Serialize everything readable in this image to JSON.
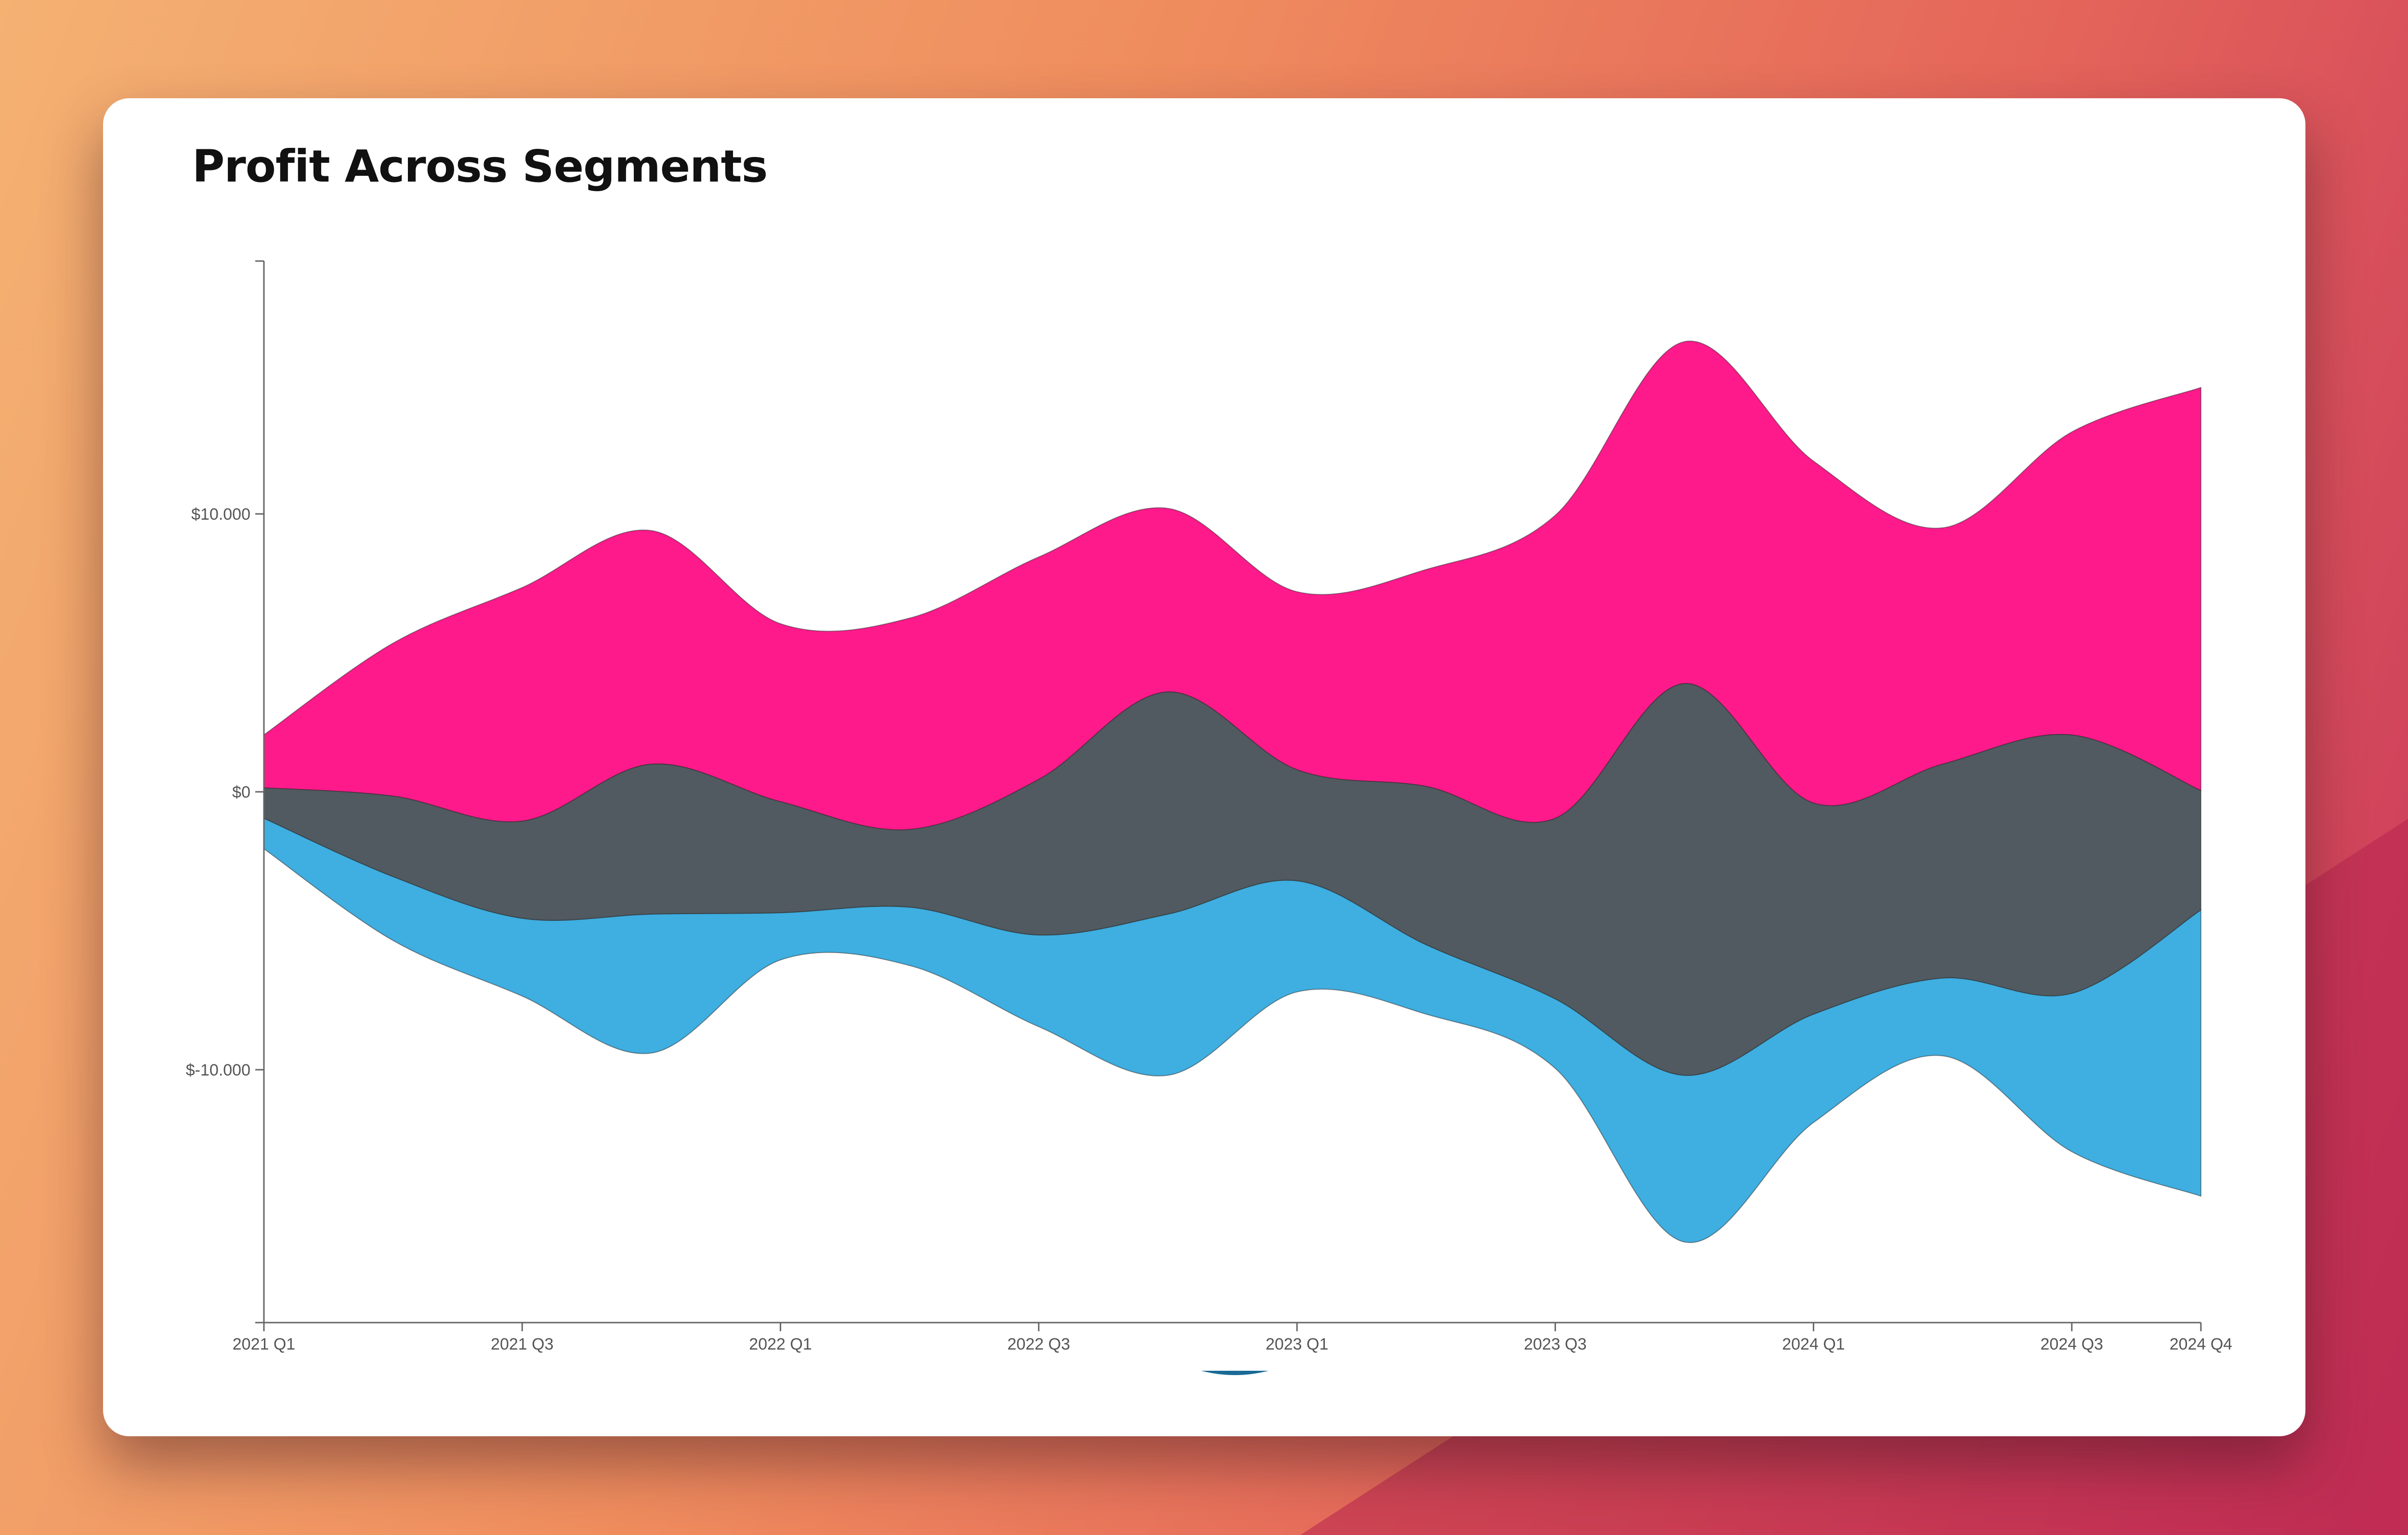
{
  "chart_data": {
    "type": "area",
    "subtype": "streamgraph",
    "title": "Profit Across Segments",
    "x": [
      "2021 Q1",
      "2021 Q2",
      "2021 Q3",
      "2021 Q4",
      "2022 Q1",
      "2022 Q2",
      "2022 Q3",
      "2022 Q4",
      "2023 Q1",
      "2023 Q2",
      "2023 Q3",
      "2023 Q4",
      "2024 Q1",
      "2024 Q2",
      "2024 Q3",
      "2024 Q4"
    ],
    "x_tick_labels": [
      "2021 Q1",
      "2021 Q3",
      "2022 Q1",
      "2022 Q3",
      "2023 Q1",
      "2023 Q3",
      "2024 Q1",
      "2024 Q3",
      "2024 Q4"
    ],
    "y_tick_values": [
      10000,
      0,
      -10000
    ],
    "y_tick_labels": [
      "$10.000",
      "$0",
      "$-10.000"
    ],
    "ylim": [
      -19100,
      19100
    ],
    "offset": "silhouette",
    "grid": false,
    "series": [
      {
        "color": "#3FAEE0",
        "values": [
          1100,
          2300,
          2800,
          5000,
          1700,
          2100,
          3300,
          5800,
          4000,
          2500,
          2500,
          6000,
          3900,
          2800,
          5700,
          10300
        ]
      },
      {
        "color": "#505A60",
        "values": [
          1100,
          2900,
          3500,
          5400,
          4000,
          2800,
          5600,
          8000,
          4000,
          5700,
          6500,
          14100,
          7600,
          7700,
          9300,
          4300
        ]
      },
      {
        "color": "#FF1A8C",
        "values": [
          1900,
          5500,
          8400,
          8400,
          6400,
          7600,
          8000,
          6600,
          6400,
          7800,
          10900,
          12300,
          12300,
          8500,
          10900,
          14500
        ]
      }
    ]
  }
}
